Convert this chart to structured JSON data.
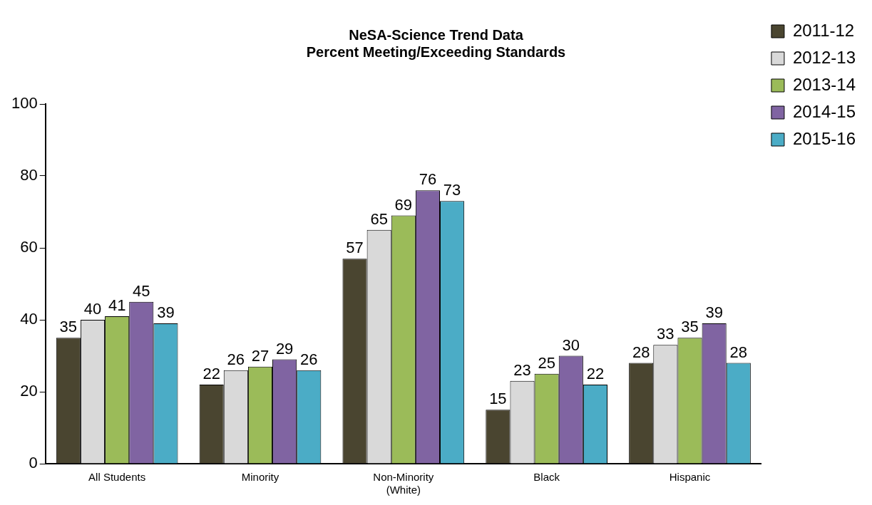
{
  "chart_data": {
    "type": "bar",
    "title": "NeSA-Science Trend Data\nPercent Meeting/Exceeding Standards",
    "categories": [
      "All Students",
      "Minority",
      "Non-Minority\n(White)",
      "Black",
      "Hispanic"
    ],
    "series": [
      {
        "name": "2011-12",
        "color": "#4a4530",
        "values": [
          35,
          22,
          57,
          15,
          28
        ]
      },
      {
        "name": "2012-13",
        "color": "#d9d9d9",
        "values": [
          40,
          26,
          65,
          23,
          33
        ]
      },
      {
        "name": "2013-14",
        "color": "#9bbb59",
        "values": [
          41,
          27,
          69,
          25,
          35
        ]
      },
      {
        "name": "2014-15",
        "color": "#8064a2",
        "values": [
          45,
          29,
          76,
          30,
          39
        ]
      },
      {
        "name": "2015-16",
        "color": "#4bacc6",
        "values": [
          39,
          26,
          73,
          22,
          28
        ]
      }
    ],
    "ylim": [
      0,
      100
    ],
    "yticks": [
      0,
      20,
      40,
      60,
      80,
      100
    ],
    "grid": false,
    "legend": "top right",
    "data_labels": true
  }
}
